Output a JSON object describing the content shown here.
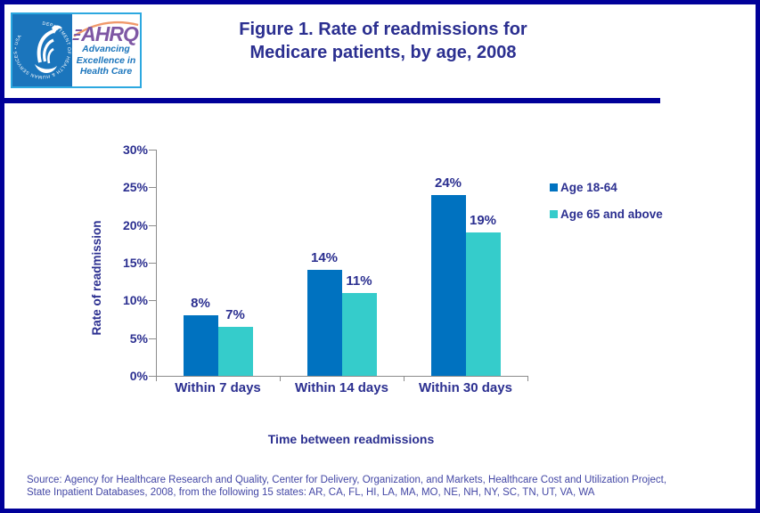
{
  "colors": {
    "border_navy": "#000099",
    "title_navy": "#2B2F90",
    "axis_gray": "#8C8C8C",
    "source_indigo": "#4347A5",
    "hhs_blue": "#1B75BC",
    "ahrq_purple": "#7E57A4",
    "ahrq_arc_orange": "#F0996B",
    "logo_border_blue": "#2CA8E0",
    "bar_blue": "#0072C0",
    "bar_teal": "#35CCCB"
  },
  "logo": {
    "seal_text": "DEPARTMENT OF HEALTH & HUMAN SERVICES • USA",
    "ahrq": "AHRQ",
    "tagline_lines": [
      "Advancing",
      "Excellence in",
      "Health Care"
    ]
  },
  "header": {
    "title_line1": "Figure 1. Rate of readmissions for",
    "title_line2": "Medicare patients, by age, 2008"
  },
  "chart_data": {
    "type": "bar",
    "title": "Figure 1. Rate of readmissions for Medicare patients, by age, 2008",
    "categories": [
      "Within 7 days",
      "Within 14 days",
      "Within 30 days"
    ],
    "series": [
      {
        "name": "Age 18-64",
        "values": [
          8,
          14,
          24
        ],
        "labels": [
          "8%",
          "14%",
          "24%"
        ],
        "color": "#0072C0"
      },
      {
        "name": "Age 65 and above",
        "values": [
          6.5,
          11,
          19
        ],
        "labels": [
          "7%",
          "11%",
          "19%"
        ],
        "color": "#35CCCB"
      }
    ],
    "xlabel": "Time between readmissions",
    "ylabel": "Rate of readmission",
    "ylim": [
      0,
      30
    ],
    "yticks": [
      0,
      5,
      10,
      15,
      20,
      25,
      30
    ],
    "ytick_labels": [
      "0%",
      "5%",
      "10%",
      "15%",
      "20%",
      "25%",
      "30%"
    ],
    "grid": false,
    "legend_position": "right"
  },
  "source": {
    "line1": "Source: Agency for Healthcare Research and Quality, Center for Delivery, Organization, and Markets, Healthcare Cost and Utilization Project,",
    "line2": "State Inpatient Databases, 2008, from the following 15 states: AR, CA, FL, HI, LA, MA, MO, NE, NH, NY, SC, TN, UT, VA, WA"
  }
}
